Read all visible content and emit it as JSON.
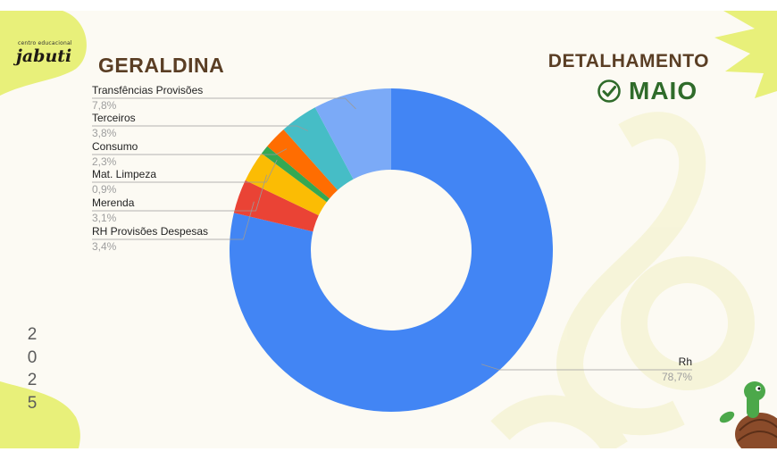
{
  "brand": {
    "tagline": "centro educacional",
    "name": "jabuti"
  },
  "school_name": "GERALDINA",
  "header": {
    "title": "DETALHAMENTO",
    "month": "MAIO",
    "check_icon": "check-circle-icon"
  },
  "year_digits": [
    "2",
    "0",
    "2",
    "5"
  ],
  "colors": {
    "brown": "#5a3e24",
    "green": "#2f6b2a",
    "accent": "#e8f07a"
  },
  "chart_data": {
    "type": "donut",
    "slices": [
      {
        "name": "Rh",
        "value_label": "78,7%",
        "value": 78.7,
        "color": "#4285f4"
      },
      {
        "name": "RH Provisões Despesas",
        "value_label": "3,4%",
        "value": 3.4,
        "color": "#ea4335"
      },
      {
        "name": "Merenda",
        "value_label": "3,1%",
        "value": 3.1,
        "color": "#fbbc04"
      },
      {
        "name": "Mat. Limpeza",
        "value_label": "0,9%",
        "value": 0.9,
        "color": "#34a853"
      },
      {
        "name": "Consumo",
        "value_label": "2,3%",
        "value": 2.3,
        "color": "#ff6d01"
      },
      {
        "name": "Terceiros",
        "value_label": "3,8%",
        "value": 3.8,
        "color": "#46bdc6"
      },
      {
        "name": "Transfências Provisões",
        "value_label": "7,8%",
        "value": 7.8,
        "color": "#7baaf7"
      }
    ]
  }
}
